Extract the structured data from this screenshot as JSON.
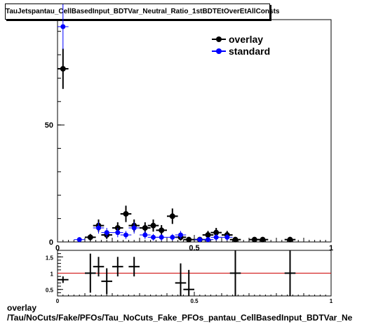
{
  "title": "TauJetspantau_CellBasedInput_BDTVar_Neutral_Ratio_1stBDTEtOverEtAllConsts",
  "footer": {
    "line1": "overlay",
    "line2": "/Tau/NoCuts/Fake/PFOs/Tau_NoCuts_Fake_PFOs_pantau_CellBasedInput_BDTVar_Ne"
  },
  "chart_data": [
    {
      "type": "scatter",
      "panel": "main",
      "xlim": [
        0,
        1
      ],
      "ylim": [
        0,
        95
      ],
      "x_ticks": [
        {
          "v": 0,
          "label": "0"
        },
        {
          "v": 0.5,
          "label": "0.5"
        },
        {
          "v": 1,
          "label": "1"
        }
      ],
      "y_ticks": [
        {
          "v": 0,
          "label": "0"
        },
        {
          "v": 50,
          "label": "50"
        }
      ],
      "legend_position": "top-right",
      "series": [
        {
          "name": "overlay",
          "color": "#000000",
          "x": [
            0.02,
            0.12,
            0.15,
            0.18,
            0.22,
            0.25,
            0.28,
            0.32,
            0.35,
            0.38,
            0.42,
            0.45,
            0.48,
            0.52,
            0.55,
            0.58,
            0.62,
            0.65,
            0.72,
            0.75,
            0.85
          ],
          "y": [
            74,
            2,
            7,
            3,
            6,
            12,
            7,
            6,
            7,
            5,
            11,
            2,
            1,
            1,
            3,
            4,
            3,
            1,
            1,
            1,
            1
          ],
          "yerr": [
            8.6,
            1.4,
            2.6,
            1.7,
            2.4,
            3.5,
            2.6,
            2.4,
            2.6,
            2.2,
            3.3,
            1.4,
            1,
            1,
            1.7,
            2,
            1.7,
            1,
            1,
            1,
            1
          ]
        },
        {
          "name": "standard",
          "color": "#0000ff",
          "x": [
            0.02,
            0.08,
            0.15,
            0.18,
            0.22,
            0.25,
            0.28,
            0.32,
            0.35,
            0.38,
            0.42,
            0.45,
            0.52,
            0.55,
            0.58,
            0.62
          ],
          "y": [
            92,
            1,
            6,
            4,
            4,
            3,
            6,
            3,
            2,
            2,
            2,
            3,
            1,
            1,
            2,
            2
          ],
          "yerr": [
            9.6,
            1,
            2.4,
            2,
            2,
            1.7,
            2.4,
            1.7,
            1.4,
            1.4,
            1.4,
            1.7,
            1,
            1,
            1.4,
            1.4
          ]
        }
      ]
    },
    {
      "type": "scatter",
      "panel": "ratio",
      "xlim": [
        0,
        1
      ],
      "ylim": [
        0.3,
        1.7
      ],
      "reference_line": 1,
      "reference_color": "#cc0000",
      "x_ticks": [
        {
          "v": 0,
          "label": "0"
        },
        {
          "v": 0.5,
          "label": "0.5"
        },
        {
          "v": 1,
          "label": "1"
        }
      ],
      "y_ticks": [
        {
          "v": 0.5,
          "label": "0.5"
        },
        {
          "v": 1,
          "label": "1"
        },
        {
          "v": 1.5,
          "label": "1.5"
        }
      ],
      "series": [
        {
          "color": "#000000",
          "x": [
            0.02,
            0.12,
            0.15,
            0.18,
            0.22,
            0.28,
            0.45,
            0.48,
            0.65,
            0.85
          ],
          "xerr": [
            0.02,
            0.02,
            0.02,
            0.02,
            0.02,
            0.02,
            0.02,
            0.02,
            0.02,
            0.02
          ],
          "y": [
            0.8,
            1.0,
            1.2,
            0.75,
            1.2,
            1.2,
            0.7,
            0.5,
            1.0,
            1.0
          ],
          "yerr": [
            0.1,
            0.6,
            0.3,
            0.4,
            0.3,
            0.3,
            0.6,
            0.6,
            0.7,
            0.7
          ]
        }
      ]
    }
  ]
}
